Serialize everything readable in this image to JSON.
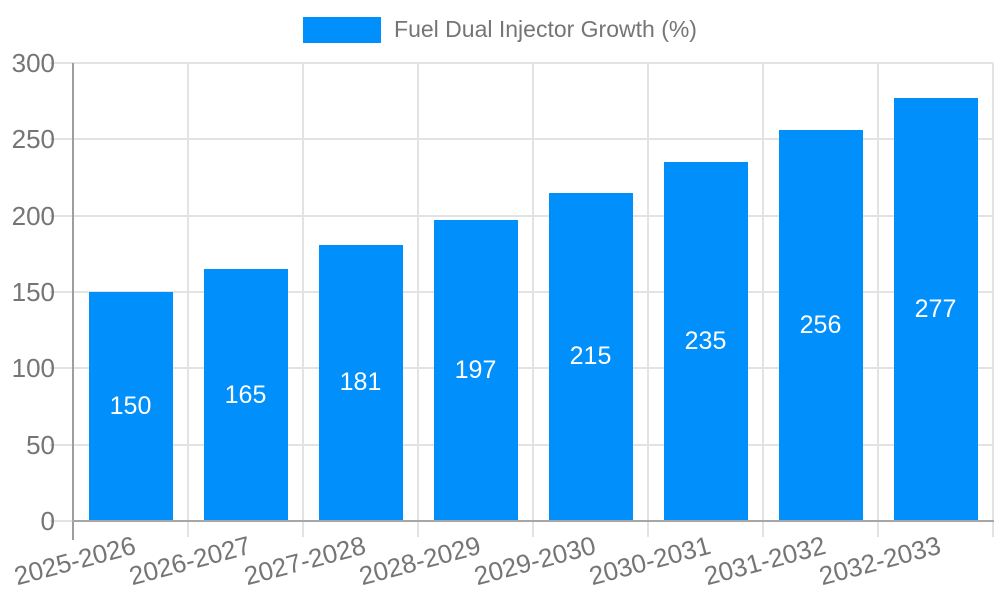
{
  "chart_data": {
    "type": "bar",
    "title": "Fuel Dual Injector Growth (%)",
    "legend": {
      "label": "Fuel Dual Injector Growth (%)",
      "position": "top"
    },
    "categories": [
      "2025-2026",
      "2026-2027",
      "2027-2028",
      "2028-2029",
      "2029-2030",
      "2030-2031",
      "2031-2032",
      "2032-2033"
    ],
    "values": [
      150,
      165,
      181,
      197,
      215,
      235,
      256,
      277
    ],
    "xlabel": "",
    "ylabel": "",
    "ylim": [
      0,
      300
    ],
    "yticks": [
      0,
      50,
      100,
      150,
      200,
      250,
      300
    ],
    "grid": true,
    "data_labels": true,
    "colors": {
      "bar": "#008FFB",
      "gridline": "#e3e3e3",
      "y_axis_line": "#9e9e9e",
      "x_axis_line": "#a6a6a6",
      "tick_label": "#757575",
      "legend_label": "#757575",
      "data_label": "#ffffff"
    }
  }
}
